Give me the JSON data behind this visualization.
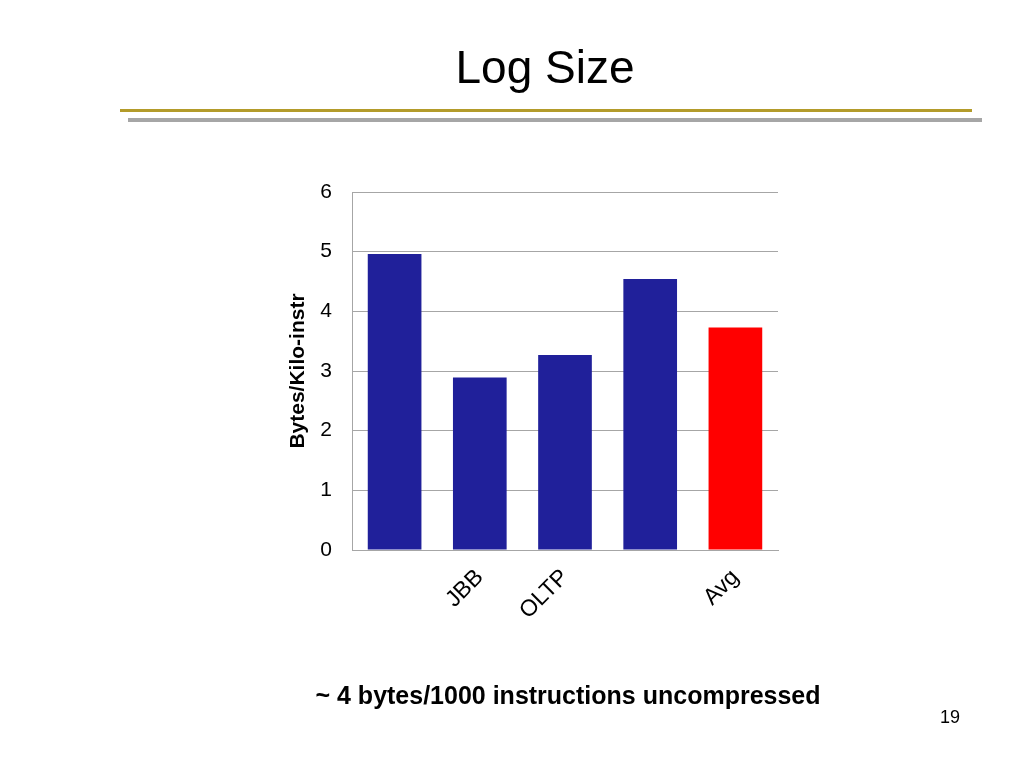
{
  "chart_data": {
    "type": "bar",
    "title": "Log Size",
    "ylabel": "Bytes/Kilo-instr",
    "categories": [
      null,
      "JBB",
      "OLTP",
      null,
      "Avg"
    ],
    "values": [
      4.96,
      2.89,
      3.27,
      4.54,
      3.73
    ],
    "colors": [
      "#20209a",
      "#20209a",
      "#20209a",
      "#20209a",
      "#ff0000"
    ],
    "ylim": [
      0,
      6
    ],
    "yticks": [
      0,
      1,
      2,
      3,
      4,
      5,
      6
    ],
    "grid": "y",
    "legend": false,
    "annotations": [
      "~ 4 bytes/1000 instructions uncompressed",
      "19"
    ]
  }
}
